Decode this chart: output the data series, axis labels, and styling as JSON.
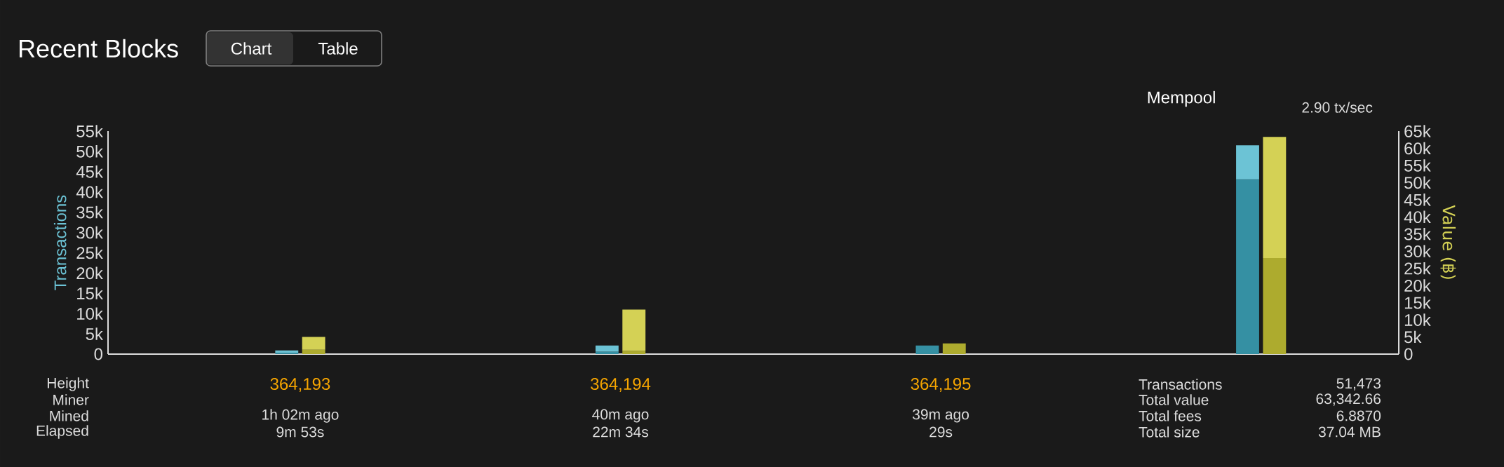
{
  "chart_data": {
    "type": "bar",
    "title": "Recent Blocks",
    "stacked": true,
    "categories": [
      "364,193",
      "364,194",
      "364,195",
      "Mempool"
    ],
    "series": [
      {
        "color": "#3590a3",
        "values": [
          300,
          600,
          2100,
          43100
        ],
        "axis": "y"
      },
      {
        "color": "#6cc3d5",
        "values": [
          600,
          1500,
          null,
          8400
        ],
        "axis": "y"
      },
      {
        "color": "#adab2e",
        "values": [
          1300,
          900,
          3100,
          28000
        ],
        "axis": "y2"
      },
      {
        "color": "#d4d155",
        "values": [
          3700,
          12100,
          null,
          35300
        ],
        "axis": "y2"
      }
    ],
    "ylabel": "Transactions",
    "y2label": "Value (฿)",
    "ylim": [
      0,
      55000
    ],
    "yticks": [
      0,
      {
        "value": 5000,
        "label": "5k"
      },
      {
        "value": 10000,
        "label": "10k"
      },
      {
        "value": 15000,
        "label": "15k"
      },
      {
        "value": 20000,
        "label": "20k"
      },
      {
        "value": 25000,
        "label": "25k"
      },
      {
        "value": 30000,
        "label": "30k"
      },
      {
        "value": 35000,
        "label": "35k"
      },
      {
        "value": 40000,
        "label": "40k"
      },
      {
        "value": 45000,
        "label": "45k"
      },
      {
        "value": 50000,
        "label": "50k"
      },
      {
        "value": 55000,
        "label": "55k"
      }
    ],
    "y2lim": [
      0,
      65000
    ],
    "y2ticks": [
      0,
      {
        "value": 5000,
        "label": "5k"
      },
      {
        "value": 10000,
        "label": "10k"
      },
      {
        "value": 15000,
        "label": "15k"
      },
      {
        "value": 20000,
        "label": "20k"
      },
      {
        "value": 25000,
        "label": "25k"
      },
      {
        "value": 30000,
        "label": "30k"
      },
      {
        "value": 35000,
        "label": "35k"
      },
      {
        "value": 40000,
        "label": "40k"
      },
      {
        "value": 45000,
        "label": "45k"
      },
      {
        "value": 50000,
        "label": "50k"
      },
      {
        "value": 55000,
        "label": "55k"
      },
      {
        "value": 60000,
        "label": "60k"
      },
      {
        "value": 65000,
        "label": "65k"
      }
    ],
    "grid": false,
    "annotations": [
      "Chart",
      "Table",
      "Height",
      "Miner",
      "Mined",
      "Elapsed",
      "1h 02m ago",
      "40m ago",
      "39m ago",
      "9m 53s",
      "22m 34s",
      "29s",
      "2.90 tx/sec",
      "Transactions",
      "51,473",
      "Total value",
      "63,342.66",
      "Total fees",
      "6.8870",
      "Total size",
      "37.04 MB"
    ]
  }
}
